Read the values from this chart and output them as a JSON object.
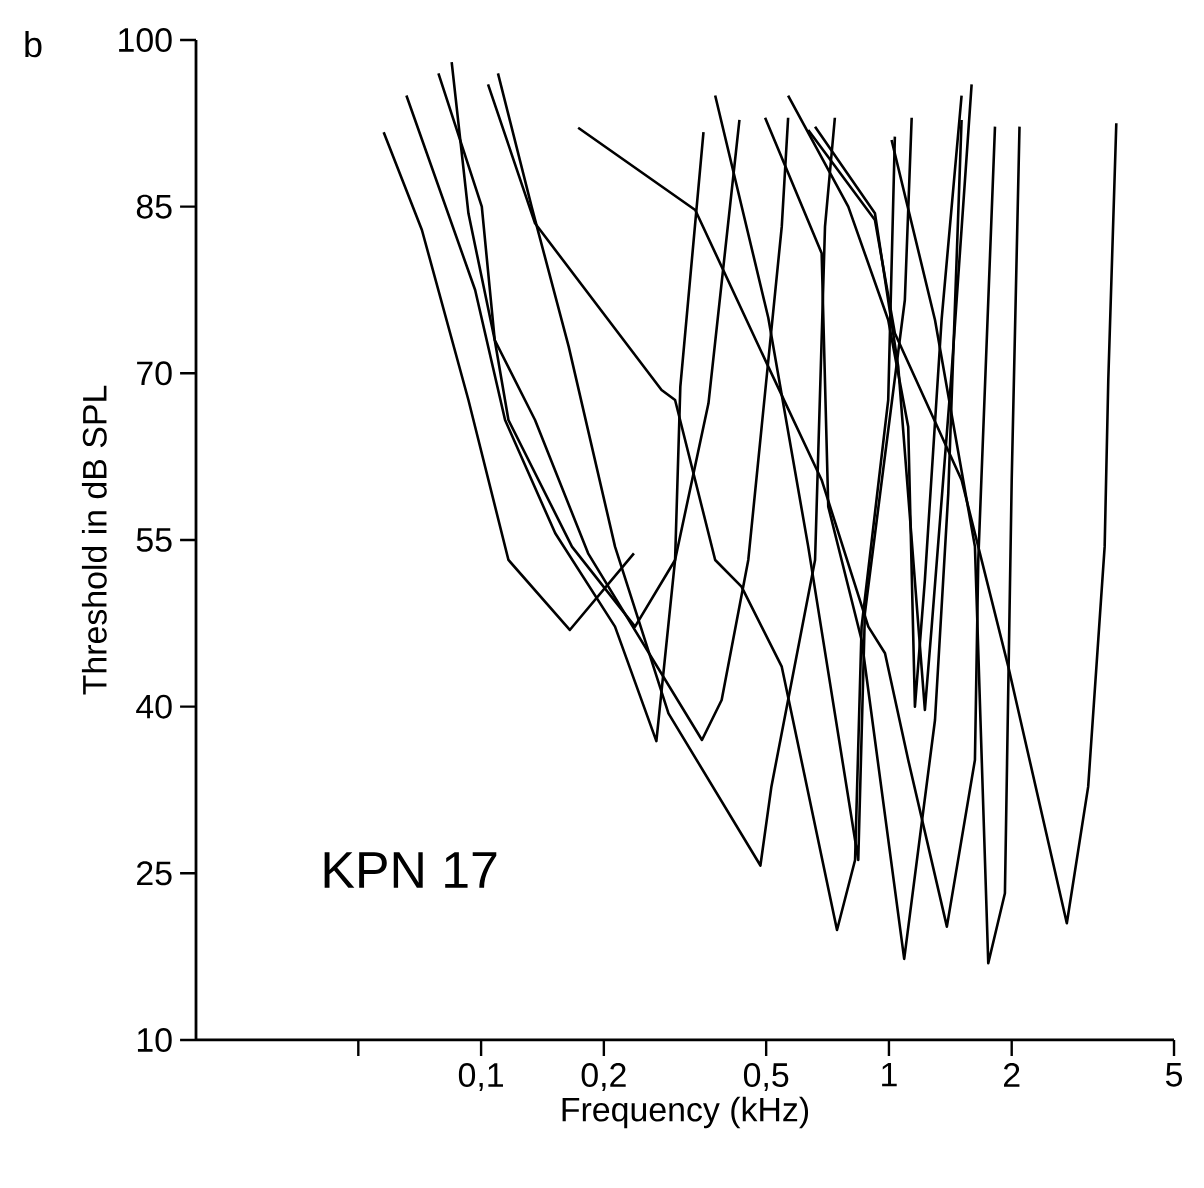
{
  "chart_data": {
    "type": "line",
    "title": "b",
    "xlabel": "Frequency (kHz)",
    "ylabel": "Threshold in dB SPL",
    "annotations": [
      "KPN 17"
    ],
    "log": "x",
    "xlim": [
      0.02,
      5
    ],
    "ylim": [
      10,
      100
    ],
    "xticks": [
      {
        "value": 0.05,
        "label": null
      },
      {
        "value": 0.1,
        "label": "0,1"
      },
      {
        "value": 0.2,
        "label": "0,2"
      },
      {
        "value": 0.5,
        "label": "0,5"
      },
      1,
      2,
      5
    ],
    "yticks": [
      10,
      25,
      40,
      55,
      70,
      85,
      100
    ],
    "grid": false,
    "marker": "none",
    "line_style": "solid",
    "series": [
      {
        "color": "#000000",
        "x": [
          0.0577,
          0.0716,
          0.0931,
          0.1167,
          0.165,
          0.237
        ],
        "values": [
          91.7,
          82.9,
          67.6,
          53.2,
          46.9,
          53.8
        ]
      },
      {
        "color": "#000000",
        "x": [
          0.0656,
          0.0967,
          0.1145,
          0.152,
          0.213,
          0.269,
          0.299,
          0.308,
          0.351
        ],
        "values": [
          95,
          77.5,
          65.8,
          55.6,
          47.2,
          36.9,
          53.2,
          68.8,
          91.7
        ]
      },
      {
        "color": "#000000",
        "x": [
          0.0786,
          0.1004,
          0.108,
          0.1167,
          0.167,
          0.2385,
          0.299,
          0.361,
          0.43
        ],
        "values": [
          97,
          85,
          73,
          65.8,
          54.4,
          47.2,
          53.2,
          67.3,
          92.8
        ]
      },
      {
        "color": "#000000",
        "x": [
          0.0847,
          0.0931,
          0.108,
          0.1356,
          0.183,
          0.348,
          0.389,
          0.452,
          0.546,
          0.566
        ],
        "values": [
          98,
          84.4,
          73,
          65.8,
          53.8,
          37,
          40.6,
          53.2,
          83.2,
          93
        ]
      },
      {
        "color": "#000000",
        "x": [
          0.11,
          0.133,
          0.164,
          0.213,
          0.288,
          0.484,
          0.515,
          0.659,
          0.697,
          0.737
        ],
        "values": [
          97,
          85,
          72.4,
          54.4,
          39.4,
          25.7,
          32.8,
          53.2,
          83.2,
          93
        ]
      },
      {
        "color": "#000000",
        "x": [
          0.173,
          0.335,
          0.506,
          0.684,
          0.89,
          0.978,
          1.115,
          1.387,
          1.625,
          1.656,
          1.82
        ],
        "values": [
          92.1,
          84.7,
          70.6,
          60.4,
          47.2,
          44.8,
          35.2,
          20.2,
          35.2,
          53.2,
          92.2
        ]
      },
      {
        "color": "#000000",
        "x": [
          0.104,
          0.1356,
          0.277,
          0.299,
          0.375,
          0.435,
          0.546,
          0.746,
          0.826,
          0.857,
          0.996,
          1.034
        ],
        "values": [
          96,
          83.5,
          68.5,
          67.6,
          53.2,
          50.8,
          43.6,
          19.9,
          26.2,
          47.2,
          67.6,
          91.3
        ]
      },
      {
        "color": "#000000",
        "x": [
          0.375,
          0.506,
          0.634,
          0.841,
          0.873,
          1.094,
          1.137
        ],
        "values": [
          95,
          75,
          54.4,
          26.2,
          48.4,
          76.6,
          93
        ]
      },
      {
        "color": "#000000",
        "x": [
          0.497,
          0.684,
          0.71,
          0.857,
          1.09,
          1.297,
          1.398,
          1.507
        ],
        "values": [
          93,
          80.8,
          58,
          46,
          17.3,
          38.8,
          59.2,
          92.8
        ]
      },
      {
        "color": "#000000",
        "x": [
          1.015,
          1.297,
          1.625,
          1.752,
          1.925,
          2.0,
          2.09
        ],
        "values": [
          91,
          74.8,
          54.4,
          16.9,
          23.2,
          60.4,
          92.2
        ]
      },
      {
        "color": "#000000",
        "x": [
          0.634,
          0.924,
          1.034,
          1.507,
          1.962,
          2.73,
          3.08,
          3.38,
          3.45,
          3.61
        ],
        "values": [
          91.9,
          83.8,
          73.6,
          60.4,
          43.6,
          20.5,
          32.8,
          54.4,
          69.4,
          92.5
        ]
      },
      {
        "color": "#000000",
        "x": [
          0.566,
          0.795,
          0.996,
          1.115,
          1.158,
          1.225,
          1.346,
          1.507
        ],
        "values": [
          95,
          85,
          74.8,
          65.2,
          40,
          51.4,
          74.8,
          95
        ]
      },
      {
        "color": "#000000",
        "x": [
          0.659,
          0.924,
          1.054,
          1.225,
          1.273,
          1.424,
          1.595
        ],
        "values": [
          92.2,
          84.4,
          70.6,
          39.7,
          47.2,
          70,
          96
        ]
      }
    ]
  }
}
